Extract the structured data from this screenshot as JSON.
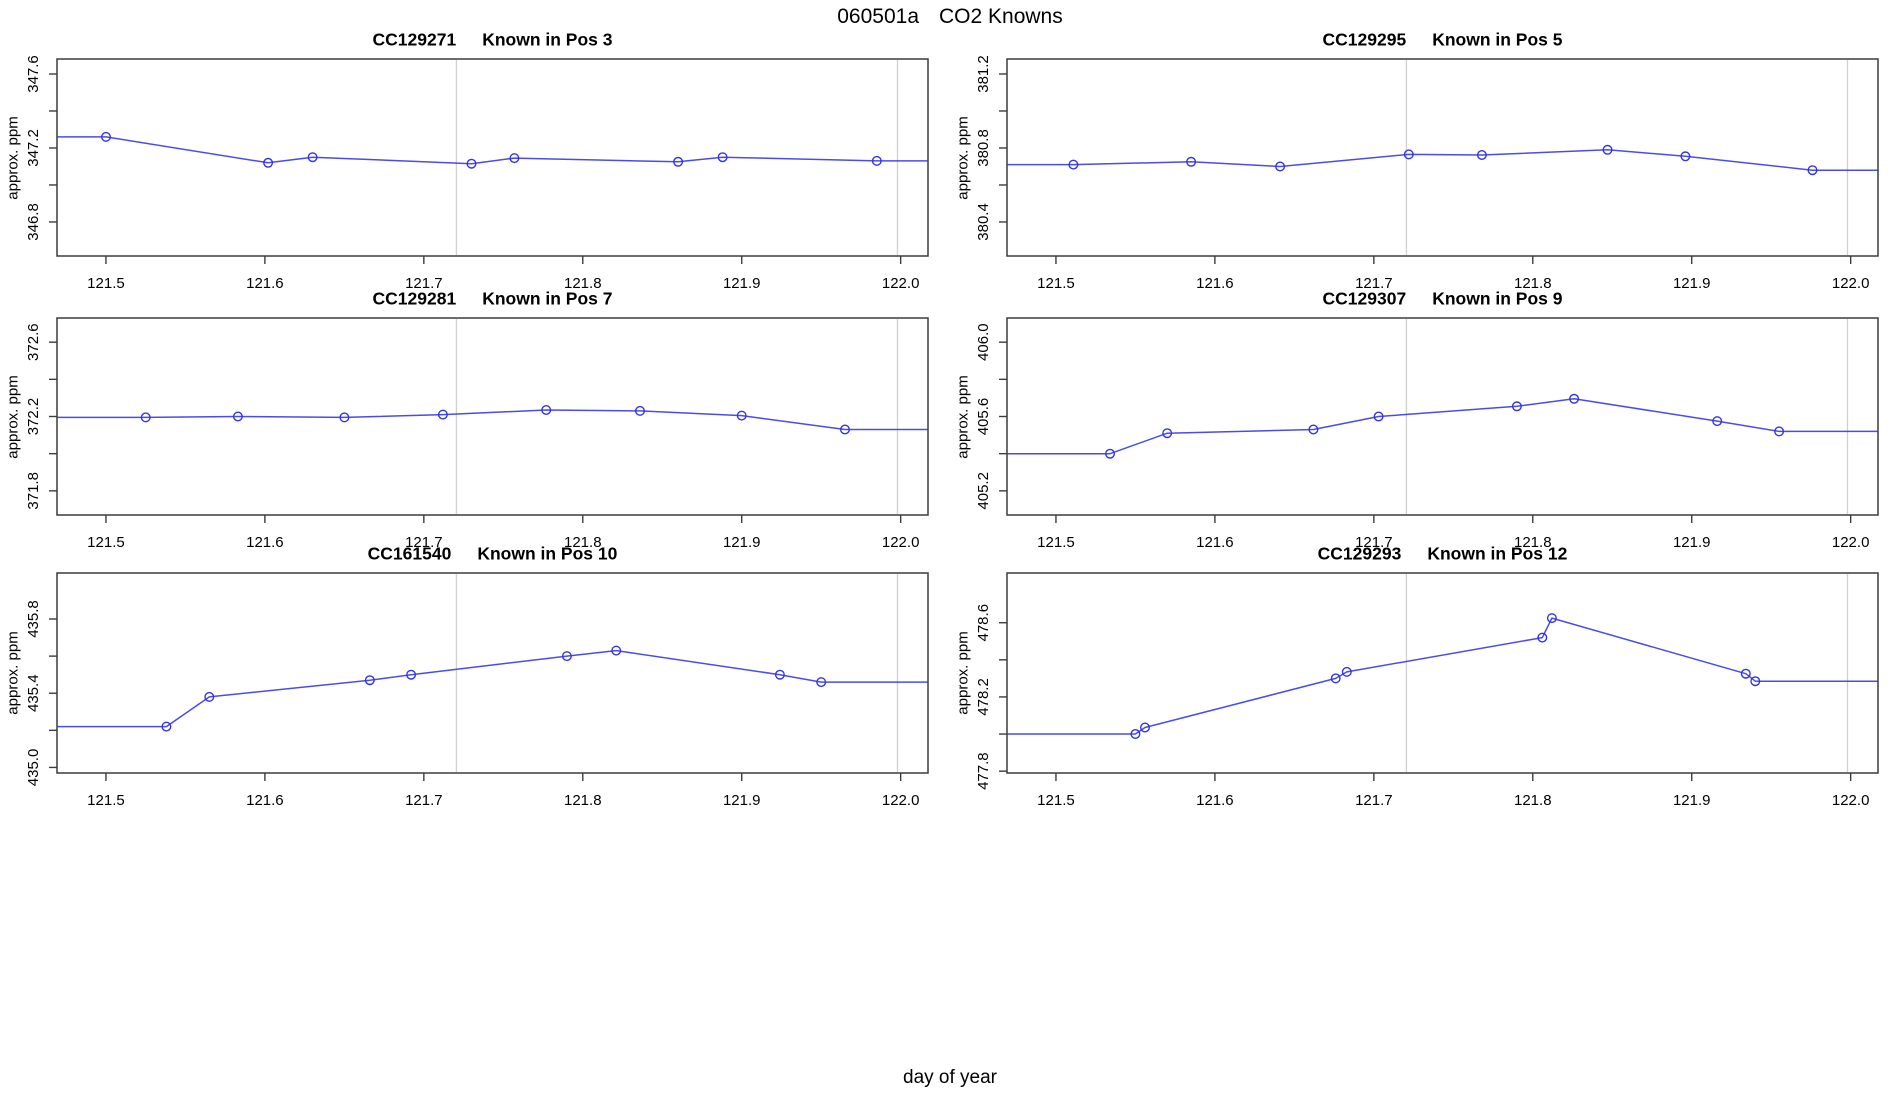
{
  "title": {
    "run": "060501a",
    "subject": "CO2 Knowns"
  },
  "xlabel": "day of year",
  "ylabel": "approx. ppm",
  "colors": {
    "line": "#3232e8",
    "grid": "#d0d0d0",
    "axis": "#3c3c3c",
    "text": "#000000",
    "background": "#ffffff"
  },
  "axis": {
    "xlim": [
      121.4692,
      122.0172
    ],
    "xticks": [
      121.5,
      121.6,
      121.7,
      121.8,
      121.9,
      122.0
    ],
    "xtick_labels": [
      "121.5",
      "121.6",
      "121.7",
      "121.8",
      "121.9",
      "122.0"
    ],
    "gridlines_x": [
      121.7205,
      121.998
    ],
    "grid": "vertical-reference-lines-only",
    "legend": "none"
  },
  "chart_data": [
    {
      "type": "line",
      "id": "CC129271",
      "pos": "Known in Pos 3",
      "ylim": [
        346.616,
        347.681
      ],
      "yticks": [
        346.8,
        347.0,
        347.2,
        347.4,
        347.6
      ],
      "ytick_labels": [
        "346.8",
        "",
        "347.2",
        "",
        "347.6"
      ],
      "x": [
        121.5,
        121.602,
        121.63,
        121.73,
        121.757,
        121.86,
        121.888,
        121.985
      ],
      "y": [
        347.26,
        347.12,
        347.15,
        347.115,
        347.145,
        347.125,
        347.15,
        347.13
      ]
    },
    {
      "type": "line",
      "id": "CC129295",
      "pos": "Known in Pos 5",
      "ylim": [
        380.216,
        381.281
      ],
      "yticks": [
        380.4,
        380.6,
        380.8,
        381.0,
        381.2
      ],
      "ytick_labels": [
        "380.4",
        "",
        "380.8",
        "",
        "381.2"
      ],
      "x": [
        121.511,
        121.585,
        121.641,
        121.722,
        121.768,
        121.847,
        121.896,
        121.976
      ],
      "y": [
        380.71,
        380.725,
        380.7,
        380.765,
        380.762,
        380.79,
        380.755,
        380.68
      ]
    },
    {
      "type": "line",
      "id": "CC129281",
      "pos": "Known in Pos 7",
      "ylim": [
        371.67,
        372.73
      ],
      "yticks": [
        371.8,
        372.0,
        372.2,
        372.4,
        372.6
      ],
      "ytick_labels": [
        "371.8",
        "",
        "372.2",
        "",
        "372.6"
      ],
      "x": [
        121.525,
        121.583,
        121.65,
        121.712,
        121.777,
        121.836,
        121.9,
        121.965
      ],
      "y": [
        372.195,
        372.2,
        372.195,
        372.21,
        372.235,
        372.23,
        372.205,
        372.13
      ]
    },
    {
      "type": "line",
      "id": "CC129307",
      "pos": "Known in Pos 9",
      "ylim": [
        405.07,
        406.13
      ],
      "yticks": [
        405.2,
        405.4,
        405.6,
        405.8,
        406.0
      ],
      "ytick_labels": [
        "405.2",
        "",
        "405.6",
        "",
        "406.0"
      ],
      "x": [
        121.534,
        121.57,
        121.662,
        121.703,
        121.79,
        121.826,
        121.916,
        121.955
      ],
      "y": [
        405.4,
        405.51,
        405.53,
        405.6,
        405.655,
        405.695,
        405.575,
        405.52
      ]
    },
    {
      "type": "line",
      "id": "CC161540",
      "pos": "Known in Pos 10",
      "ylim": [
        434.97,
        436.048
      ],
      "yticks": [
        435.0,
        435.2,
        435.4,
        435.6,
        435.8
      ],
      "ytick_labels": [
        "435.0",
        "",
        "435.4",
        "",
        "435.8"
      ],
      "x": [
        121.538,
        121.565,
        121.666,
        121.692,
        121.79,
        121.821,
        121.924,
        121.95
      ],
      "y": [
        435.22,
        435.38,
        435.47,
        435.5,
        435.6,
        435.63,
        435.5,
        435.46
      ]
    },
    {
      "type": "line",
      "id": "CC129293",
      "pos": "Known in Pos 12",
      "ylim": [
        477.79,
        478.868
      ],
      "yticks": [
        477.8,
        478.0,
        478.2,
        478.4,
        478.6
      ],
      "ytick_labels": [
        "477.8",
        "",
        "478.2",
        "",
        "478.6"
      ],
      "x": [
        121.55,
        121.556,
        121.676,
        121.683,
        121.806,
        121.812,
        121.934,
        121.94
      ],
      "y": [
        478.0,
        478.035,
        478.3,
        478.335,
        478.52,
        478.625,
        478.325,
        478.285
      ]
    }
  ]
}
